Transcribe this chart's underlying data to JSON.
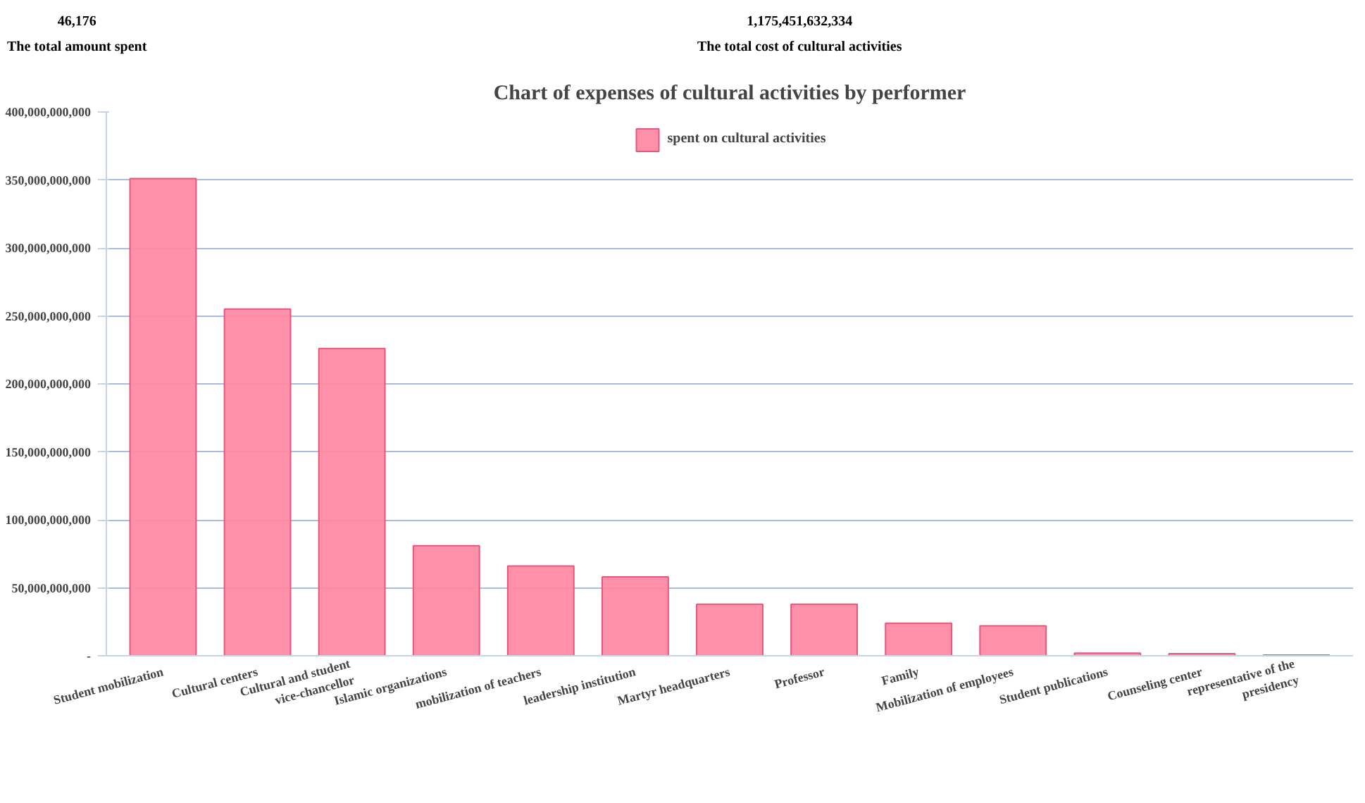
{
  "chart_data": {
    "type": "bar",
    "title": "Chart of expenses of cultural activities by performer",
    "annotations": [
      "46,176",
      "The total amount spent",
      "1,175,451,632,334",
      "The total cost of cultural activities"
    ],
    "categories": [
      "Student mobilization",
      "Cultural centers",
      "Cultural and student\nvice-chancellor",
      "Islamic organizations",
      "mobilization of teachers",
      "leadership institution",
      "Martyr headquarters",
      "Professor",
      "Family",
      "Mobilization of employees",
      "Student publications",
      "Counseling center",
      "representative of the\npresidency"
    ],
    "series": [
      {
        "name": "spent on cultural activities",
        "color": "#ff8aa4",
        "values": [
          351000000000,
          255000000000,
          226000000000,
          81000000000,
          66000000000,
          58000000000,
          38000000000,
          38000000000,
          24000000000,
          22000000000,
          2000000000,
          1500000000,
          500000000
        ]
      }
    ],
    "ylim": [
      0,
      400000000000
    ],
    "yticks": [
      {
        "value": 0,
        "label": "-"
      },
      {
        "value": 50000000000,
        "label": "50,000,000,000"
      },
      {
        "value": 100000000000,
        "label": "100,000,000,000"
      },
      {
        "value": 150000000000,
        "label": "150,000,000,000"
      },
      {
        "value": 200000000000,
        "label": "200,000,000,000"
      },
      {
        "value": 250000000000,
        "label": "250,000,000,000"
      },
      {
        "value": 300000000000,
        "label": "300,000,000,000"
      },
      {
        "value": 350000000000,
        "label": "350,000,000,000"
      },
      {
        "value": 400000000000,
        "label": "400,000,000,000"
      }
    ],
    "grid": "y",
    "legend": "top"
  }
}
